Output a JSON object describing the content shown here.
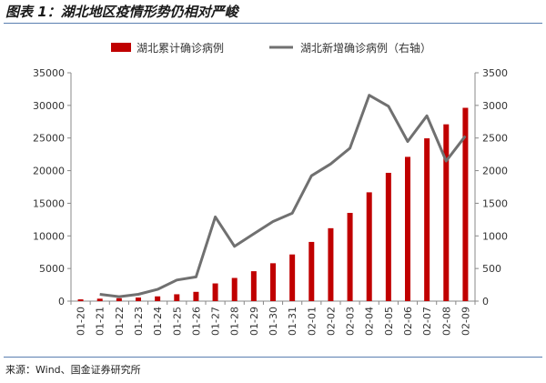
{
  "title": "图表 1：湖北地区疫情形势仍相对严峻",
  "source": "来源：Wind、国金证券研究所",
  "chart_data": {
    "type": "bar+line",
    "categories": [
      "01-20",
      "01-21",
      "01-22",
      "01-23",
      "01-24",
      "01-25",
      "01-26",
      "01-27",
      "01-28",
      "01-29",
      "01-30",
      "01-31",
      "02-01",
      "02-02",
      "02-03",
      "02-04",
      "02-05",
      "02-06",
      "02-07",
      "02-08",
      "02-09"
    ],
    "series": [
      {
        "name": "湖北累计确诊病例",
        "type": "bar",
        "axis": "left",
        "color": "#c00000",
        "values": [
          270,
          375,
          444,
          549,
          729,
          1052,
          1423,
          2714,
          3554,
          4586,
          5806,
          7153,
          9074,
          11177,
          13522,
          16678,
          19665,
          22112,
          24953,
          27100,
          29631
        ]
      },
      {
        "name": "湖北新增确诊病例（右轴）",
        "type": "line",
        "axis": "right",
        "color": "#707070",
        "values": [
          null,
          105,
          69,
          105,
          180,
          323,
          371,
          1291,
          840,
          1032,
          1220,
          1347,
          1921,
          2103,
          2345,
          3156,
          2987,
          2447,
          2841,
          2147,
          2531
        ]
      }
    ],
    "ylim_left": [
      0,
      35000
    ],
    "ylim_right": [
      0,
      3500
    ],
    "yticks_left": [
      "0",
      "5000",
      "10000",
      "15000",
      "20000",
      "25000",
      "30000",
      "35000"
    ],
    "yticks_right": [
      "0",
      "500",
      "1000",
      "1500",
      "2000",
      "2500",
      "3000",
      "3500"
    ],
    "legend_position": "top",
    "grid": false
  }
}
